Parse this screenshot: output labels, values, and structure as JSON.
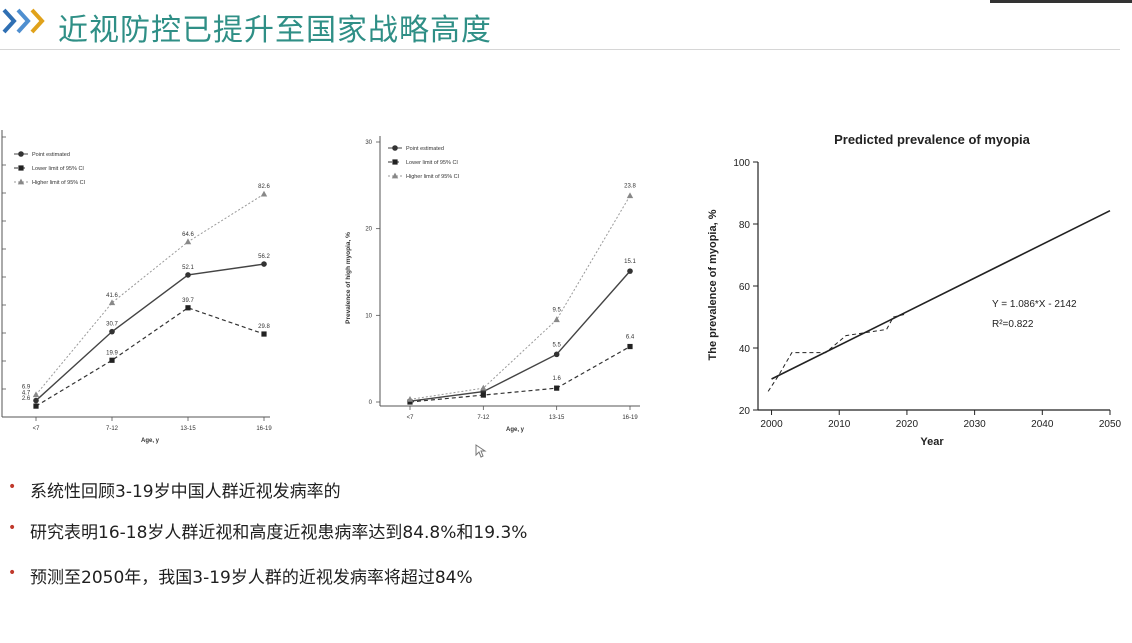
{
  "slide": {
    "title": "近视防控已提升至国家战略高度",
    "bullets": [
      "系统性回顾3-19岁中国人群近视发病率的",
      "研究表明16-18岁人群近视和高度近视患病率达到84.8%和19.3%",
      "预测至2050年，我国3-19岁人群的近视发病率将超过84%"
    ],
    "accent_color": "#2f8f86",
    "chevron_colors": [
      "#2f6fb3",
      "#4f8fd0",
      "#e0a21b"
    ],
    "bullet_color": "#c0392b"
  },
  "chart_data": [
    {
      "type": "line",
      "xlabel": "Age, y",
      "categories": [
        "<7",
        "7-12",
        "13-15",
        "16-19"
      ],
      "legend": [
        "Point estimated",
        "Lower limit of 95% CI",
        "Higher limit of 95% CI"
      ],
      "legend_position": "top-left",
      "series": [
        {
          "name": "Point estimated",
          "values": [
            4.7,
            30.7,
            52.1,
            56.2
          ],
          "labels": [
            "4.7",
            "30.7",
            "52.1",
            "56.2"
          ]
        },
        {
          "name": "Lower limit of 95% CI",
          "values": [
            2.6,
            19.9,
            39.7,
            29.8
          ],
          "labels": [
            "2.6",
            "19.9",
            "39.7",
            "29.8"
          ]
        },
        {
          "name": "Higher limit of 95% CI",
          "values": [
            6.9,
            41.6,
            64.6,
            82.6
          ],
          "labels": [
            "6.9",
            "41.6",
            "64.6",
            "82.6"
          ]
        }
      ],
      "ylim": [
        0,
        100
      ]
    },
    {
      "type": "line",
      "ylabel": "Prevalence of high myopia, %",
      "xlabel": "Age, y",
      "categories": [
        "<7",
        "7-12",
        "13-15",
        "16-19"
      ],
      "yticks": [
        "0",
        "10",
        "20",
        "30"
      ],
      "ylim": [
        0,
        30
      ],
      "legend": [
        "Point estimated",
        "Lower limit of 95% CI",
        "Higher limit of 95% CI"
      ],
      "legend_position": "top-left",
      "series": [
        {
          "name": "Point estimated",
          "values": [
            0.1,
            1.2,
            5.5,
            15.1
          ],
          "labels": [
            "",
            "",
            "5.5",
            "15.1"
          ]
        },
        {
          "name": "Lower limit of 95% CI",
          "values": [
            0.0,
            0.8,
            1.6,
            6.4
          ],
          "labels": [
            "",
            "",
            "1.6",
            "6.4"
          ]
        },
        {
          "name": "Higher limit of 95% CI",
          "values": [
            0.3,
            1.6,
            9.5,
            23.8
          ],
          "labels": [
            "",
            "",
            "9.5",
            "23.8"
          ]
        }
      ]
    },
    {
      "type": "line",
      "title": "Predicted prevalence of myopia",
      "xlabel": "Year",
      "ylabel": "The prevalence of myopia, %",
      "xticks": [
        "2000",
        "2010",
        "2020",
        "2030",
        "2040",
        "2050"
      ],
      "yticks": [
        "20",
        "40",
        "60",
        "80",
        "100"
      ],
      "xlim": [
        1998,
        2050
      ],
      "ylim": [
        20,
        100
      ],
      "annotation_equation": "Y = 1.086*X - 2142",
      "annotation_r2": "R²=0.822",
      "series": [
        {
          "name": "",
          "style": "solid",
          "x": [
            2000,
            2050
          ],
          "y": [
            30.0,
            84.3
          ]
        },
        {
          "name": "",
          "style": "dashed",
          "x": [
            1999.5,
            2001,
            2003,
            2008,
            2011,
            2017,
            2018,
            2020
          ],
          "y": [
            26,
            31,
            38.5,
            38.5,
            44,
            46,
            50,
            51
          ]
        }
      ]
    }
  ],
  "footer_text": ""
}
